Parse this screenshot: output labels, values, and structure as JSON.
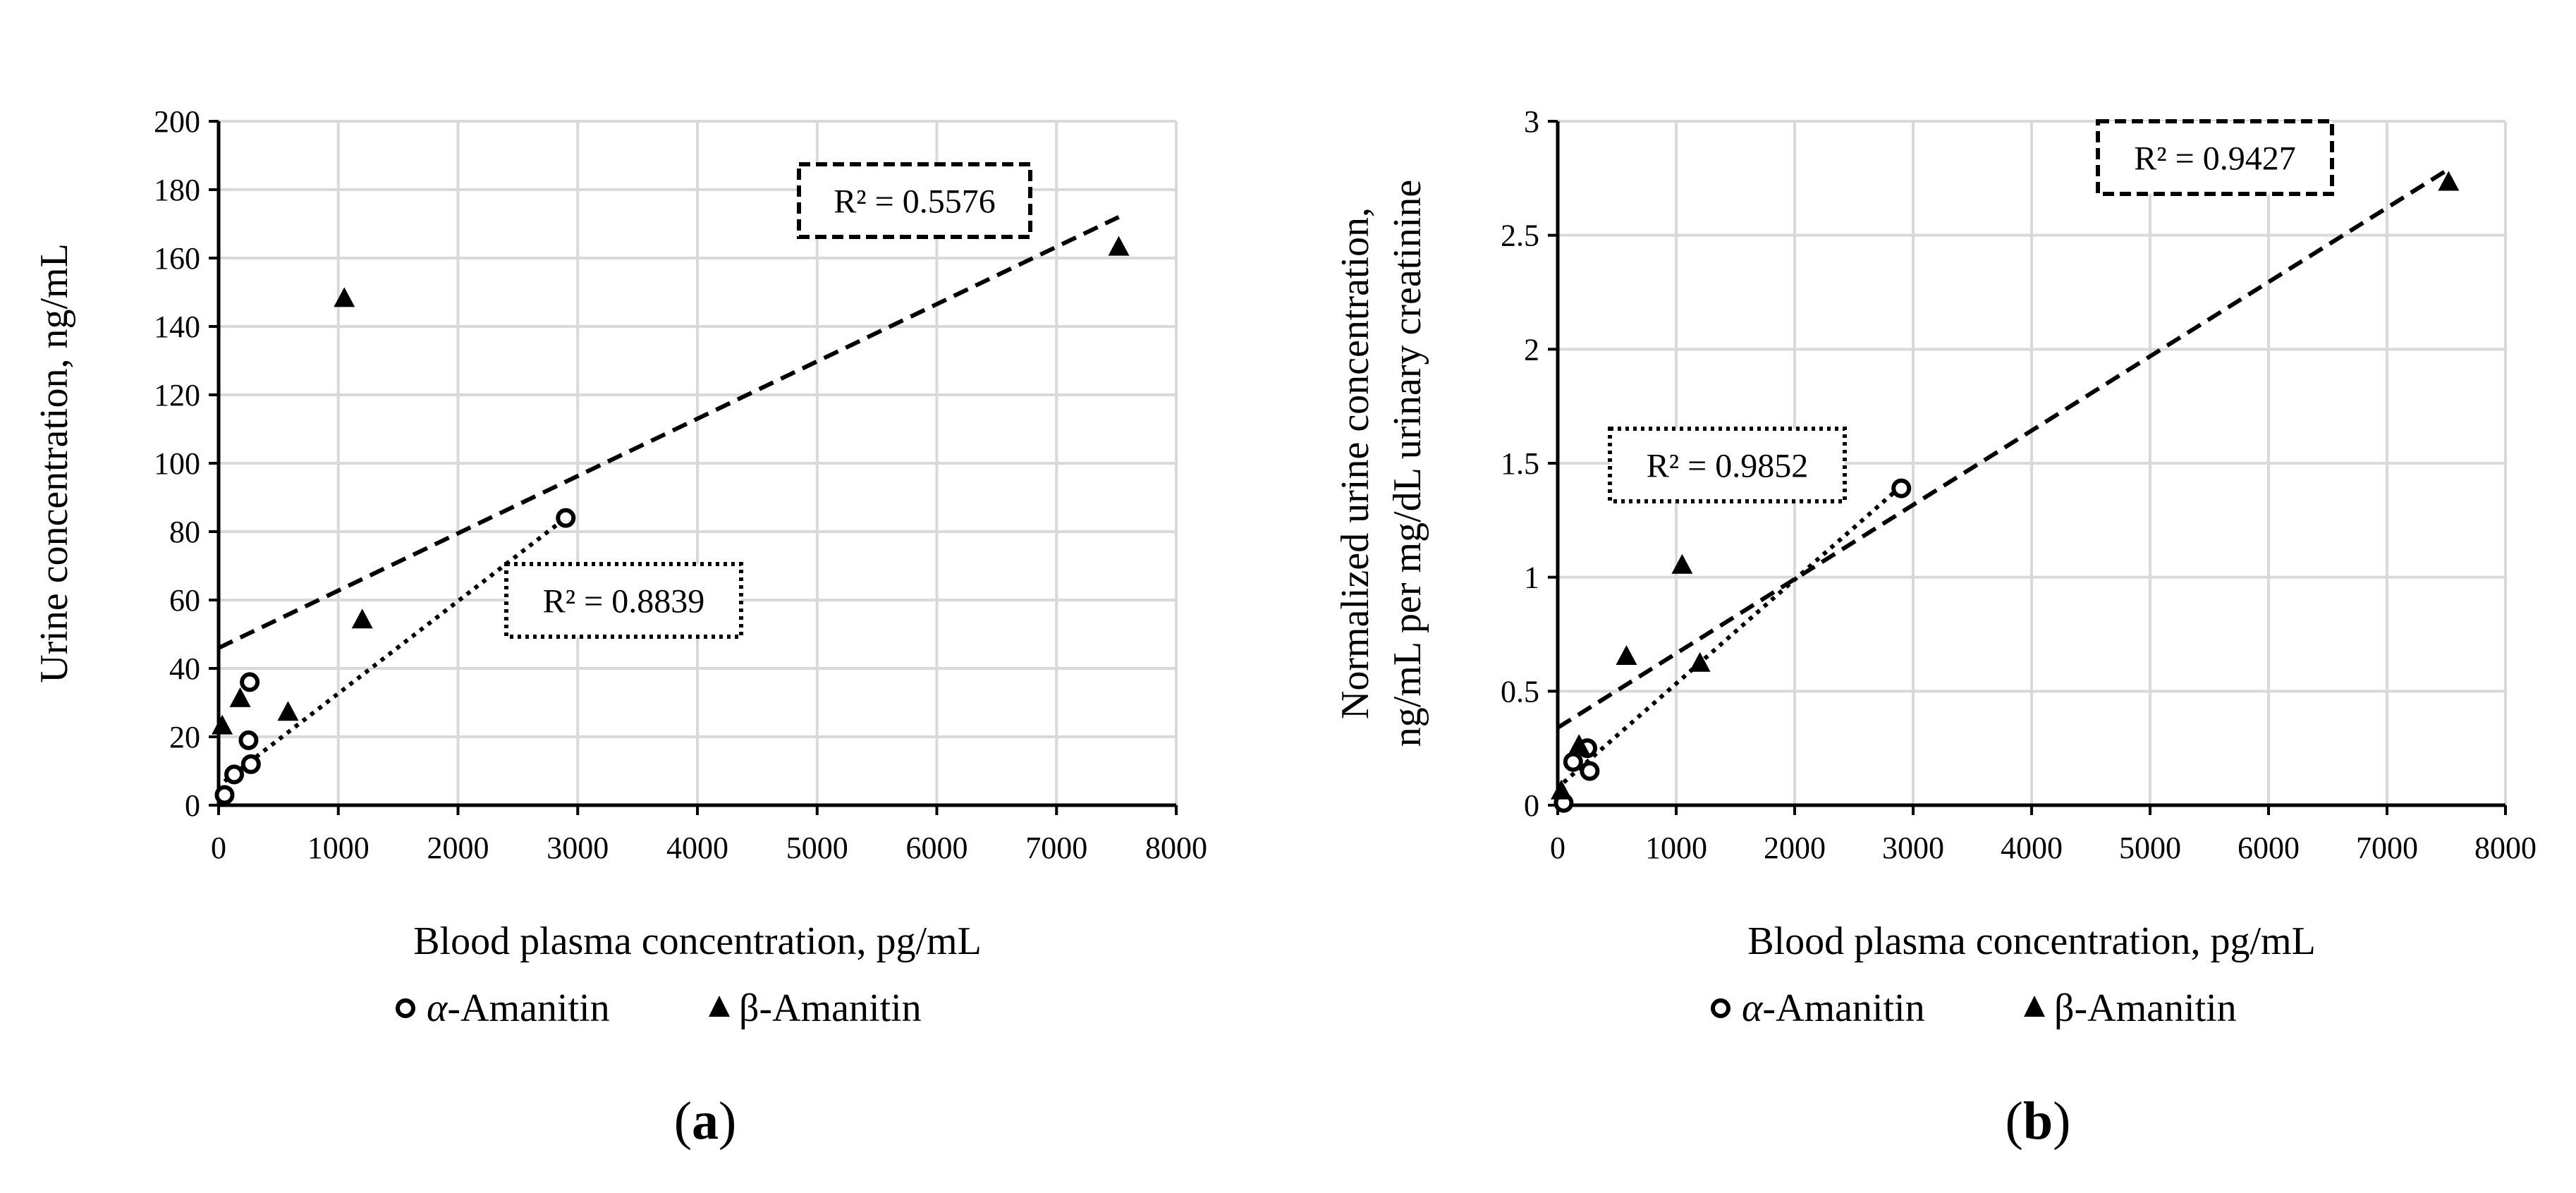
{
  "chart_data": [
    {
      "panel_label_open": "(",
      "panel_label_letter": "a",
      "panel_label_close": ")",
      "type": "scatter",
      "xlabel": "Blood plasma concentration, pg/mL",
      "ylabel": "Urine concentration, ng/mL",
      "xlim": [
        0,
        8000
      ],
      "ylim": [
        0,
        200
      ],
      "xticks": [
        0,
        1000,
        2000,
        3000,
        4000,
        5000,
        6000,
        7000,
        8000
      ],
      "yticks": [
        0,
        20,
        40,
        60,
        80,
        100,
        120,
        140,
        160,
        180,
        200
      ],
      "ytick_labels": [
        "0",
        "20",
        "40",
        "60",
        "80",
        "100",
        "120",
        "140",
        "160",
        "180",
        "200"
      ],
      "grid": true,
      "series": [
        {
          "name": "α-Amanitin",
          "name_prefix": "α",
          "name_suffix": "-Amanitin",
          "marker": "circle-open",
          "points": [
            [
              50,
              3
            ],
            [
              130,
              9
            ],
            [
              250,
              19
            ],
            [
              270,
              12
            ],
            [
              260,
              36
            ],
            [
              2900,
              84
            ]
          ],
          "trendline": {
            "style": "dotted",
            "x_range": [
              50,
              2900
            ],
            "y_range": [
              7,
              84
            ],
            "r2_label": "R² = 0.8839"
          }
        },
        {
          "name": "β-Amanitin",
          "name_prefix": "β",
          "name_suffix": "-Amanitin",
          "marker": "triangle-filled",
          "points": [
            [
              30,
              23
            ],
            [
              180,
              31
            ],
            [
              580,
              27
            ],
            [
              1050,
              148
            ],
            [
              1200,
              54
            ],
            [
              7520,
              163
            ]
          ],
          "trendline": {
            "style": "dashed",
            "x_range": [
              0,
              7520
            ],
            "y_range": [
              46,
              172
            ],
            "r2_label": "R² = 0.5576"
          }
        }
      ]
    },
    {
      "panel_label_open": "(",
      "panel_label_letter": "b",
      "panel_label_close": ")",
      "type": "scatter",
      "xlabel": "Blood plasma concentration, pg/mL",
      "ylabel_line1": "Normalized urine concentration,",
      "ylabel_line2": "ng/mL per mg/dL urinary creatinine",
      "xlim": [
        0,
        8000
      ],
      "ylim": [
        0,
        3
      ],
      "xticks": [
        0,
        1000,
        2000,
        3000,
        4000,
        5000,
        6000,
        7000,
        8000
      ],
      "yticks": [
        0,
        0.5,
        1,
        1.5,
        2,
        2.5,
        3
      ],
      "ytick_labels": [
        "0",
        "0.5",
        "1",
        "1.5",
        "2",
        "2.5",
        "3"
      ],
      "grid": true,
      "series": [
        {
          "name": "α-Amanitin",
          "name_prefix": "α",
          "name_suffix": "-Amanitin",
          "marker": "circle-open",
          "points": [
            [
              50,
              0.01
            ],
            [
              130,
              0.19
            ],
            [
              250,
              0.25
            ],
            [
              270,
              0.15
            ],
            [
              2900,
              1.39
            ]
          ],
          "trendline": {
            "style": "dotted",
            "x_range": [
              50,
              2900
            ],
            "y_range": [
              0.1,
              1.4
            ],
            "r2_label": "R² = 0.9852"
          }
        },
        {
          "name": "β-Amanitin",
          "name_prefix": "β",
          "name_suffix": "-Amanitin",
          "marker": "triangle-filled",
          "points": [
            [
              30,
              0.06
            ],
            [
              180,
              0.26
            ],
            [
              580,
              0.65
            ],
            [
              1050,
              1.05
            ],
            [
              1200,
              0.62
            ],
            [
              7520,
              2.73
            ]
          ],
          "trendline": {
            "style": "dashed",
            "x_range": [
              0,
              7520
            ],
            "y_range": [
              0.34,
              2.79
            ],
            "r2_label": "R² = 0.9427"
          }
        }
      ]
    }
  ]
}
